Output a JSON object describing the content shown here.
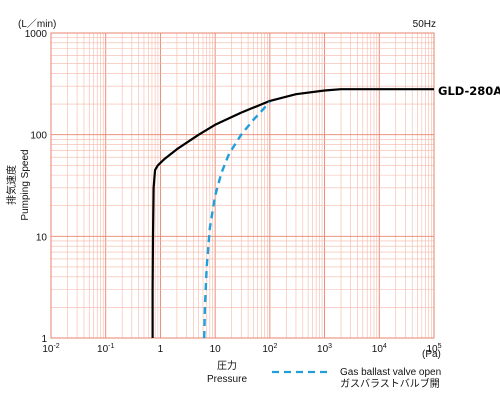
{
  "chart_data": {
    "type": "line",
    "title": "",
    "frequency_label": "50Hz",
    "unit_y": "(L／min)",
    "unit_x": "(Pa)",
    "ylabel_jp": "排気速度",
    "ylabel_en": "Pumping Speed",
    "xlabel_jp": "圧力",
    "xlabel_en": "Pressure",
    "x_scale": "log",
    "y_scale": "log",
    "xlim": [
      0.01,
      100000
    ],
    "ylim": [
      1,
      1000
    ],
    "grid": true,
    "x_ticks": [
      {
        "base": "10",
        "exp": "-2"
      },
      {
        "base": "10",
        "exp": "-1"
      },
      {
        "base": "1",
        "exp": ""
      },
      {
        "base": "10",
        "exp": ""
      },
      {
        "base": "10",
        "exp": "2"
      },
      {
        "base": "10",
        "exp": "3"
      },
      {
        "base": "10",
        "exp": "4"
      },
      {
        "base": "10",
        "exp": "5"
      }
    ],
    "y_ticks": [
      "1",
      "10",
      "100",
      "1000"
    ],
    "series": [
      {
        "name": "GLD-280A",
        "color": "#000000",
        "dash": "solid",
        "x": [
          0.72,
          0.72,
          0.73,
          0.75,
          0.8,
          0.9,
          1.2,
          2,
          5,
          10,
          30,
          100,
          300,
          1000,
          2000,
          100000
        ],
        "y": [
          1,
          3,
          10,
          30,
          45,
          50,
          58,
          72,
          100,
          125,
          165,
          215,
          250,
          272,
          280,
          280
        ]
      },
      {
        "name": "Gas ballast valve open",
        "name_jp": "ガスバラストバルブ開",
        "color": "#1f9fdc",
        "dash": "dashed",
        "x": [
          6.3,
          6.5,
          7,
          8,
          10,
          13,
          18,
          30,
          50,
          70,
          100
        ],
        "y": [
          1,
          2,
          5,
          12,
          25,
          42,
          65,
          100,
          140,
          170,
          210
        ]
      }
    ]
  }
}
